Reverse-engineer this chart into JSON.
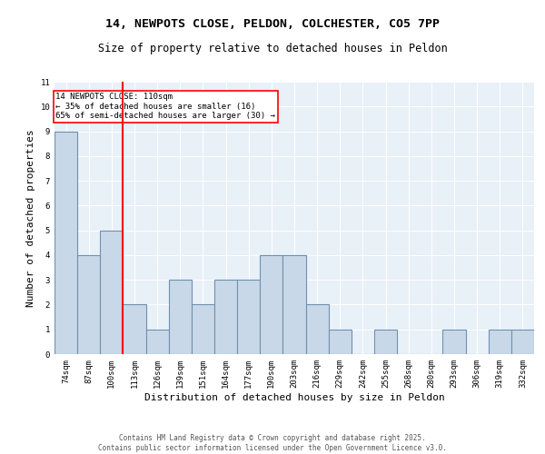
{
  "title1": "14, NEWPOTS CLOSE, PELDON, COLCHESTER, CO5 7PP",
  "title2": "Size of property relative to detached houses in Peldon",
  "xlabel": "Distribution of detached houses by size in Peldon",
  "ylabel": "Number of detached properties",
  "footnote": "Contains HM Land Registry data © Crown copyright and database right 2025.\nContains public sector information licensed under the Open Government Licence v3.0.",
  "categories": [
    "74sqm",
    "87sqm",
    "100sqm",
    "113sqm",
    "126sqm",
    "139sqm",
    "151sqm",
    "164sqm",
    "177sqm",
    "190sqm",
    "203sqm",
    "216sqm",
    "229sqm",
    "242sqm",
    "255sqm",
    "268sqm",
    "280sqm",
    "293sqm",
    "306sqm",
    "319sqm",
    "332sqm"
  ],
  "values": [
    9,
    4,
    5,
    2,
    1,
    3,
    2,
    3,
    3,
    4,
    4,
    2,
    1,
    0,
    1,
    0,
    0,
    1,
    0,
    1,
    1
  ],
  "bar_color": "#c8d8e8",
  "bar_edge_color": "#7090b0",
  "bar_edge_width": 0.8,
  "red_line_x": 2.5,
  "annotation_text": "14 NEWPOTS CLOSE: 110sqm\n← 35% of detached houses are smaller (16)\n65% of semi-detached houses are larger (30) →",
  "annotation_box_color": "white",
  "annotation_box_edge_color": "red",
  "ylim": [
    0,
    11
  ],
  "yticks": [
    0,
    1,
    2,
    3,
    4,
    5,
    6,
    7,
    8,
    9,
    10,
    11
  ],
  "bg_color": "#e8f0f8",
  "grid_color": "white",
  "title1_fontsize": 9.5,
  "title2_fontsize": 8.5,
  "xlabel_fontsize": 8,
  "ylabel_fontsize": 8,
  "tick_fontsize": 6.5,
  "annotation_fontsize": 6.5,
  "footnote_fontsize": 5.5
}
